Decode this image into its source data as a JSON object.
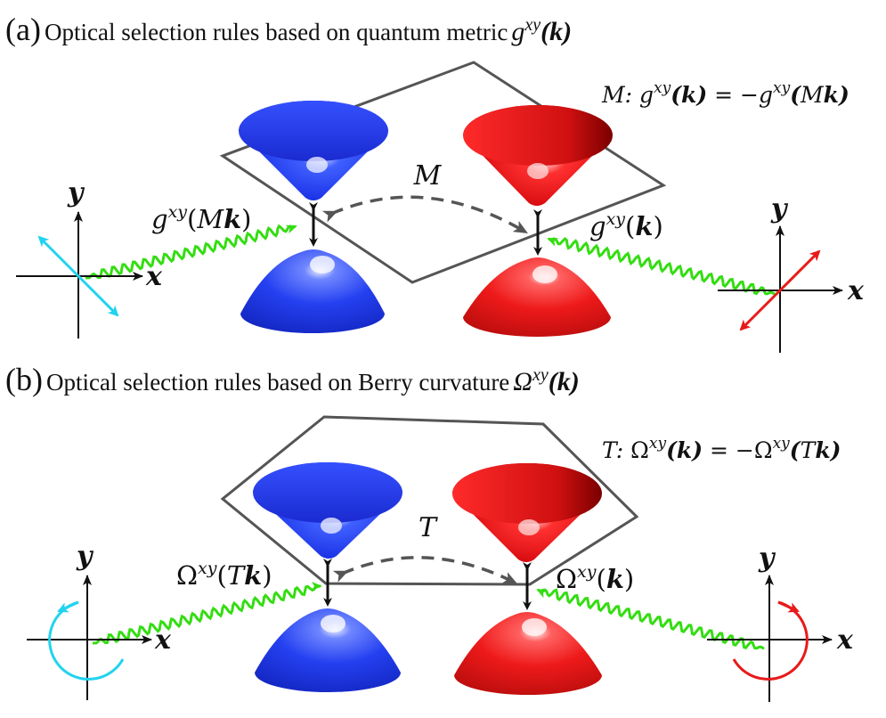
{
  "panel_a": {
    "letter": "(a)",
    "title_text": "Optical selection rules based on quantum metric",
    "title_symbol": "g",
    "title_super": "xy",
    "title_arg": "(k)",
    "symmetry_equation": "M: g^{xy}(k) = −g^{xy}(Mk)",
    "operation_label": "M",
    "left_label": "g^{xy}(Mk)",
    "right_label": "g^{xy}(k)",
    "axis_x": "x",
    "axis_y": "y",
    "left_polarization": "linear",
    "right_polarization": "linear"
  },
  "panel_b": {
    "letter": "(b)",
    "title_text": "Optical selection rules based on Berry curvature",
    "title_symbol": "Ω",
    "title_super": "xy",
    "title_arg": "(k)",
    "symmetry_equation": "T: Ω^{xy}(k) = −Ω^{xy}(Tk)",
    "operation_label": "T",
    "left_label": "Ω^{xy}(Tk)",
    "right_label": "Ω^{xy}(k)",
    "axis_x": "x",
    "axis_y": "y",
    "left_polarization": "circular",
    "right_polarization": "circular"
  },
  "colors": {
    "left_valley": "#1f3bff",
    "right_valley": "#e8101a",
    "left_light": "#22d3ee",
    "right_light": "#e81a1a",
    "photon": "#33dd11",
    "plane": "#555555",
    "dashed_arrow": "#555555"
  },
  "icons": {
    "photon": "wavy-line",
    "transition": "double-arrow"
  }
}
